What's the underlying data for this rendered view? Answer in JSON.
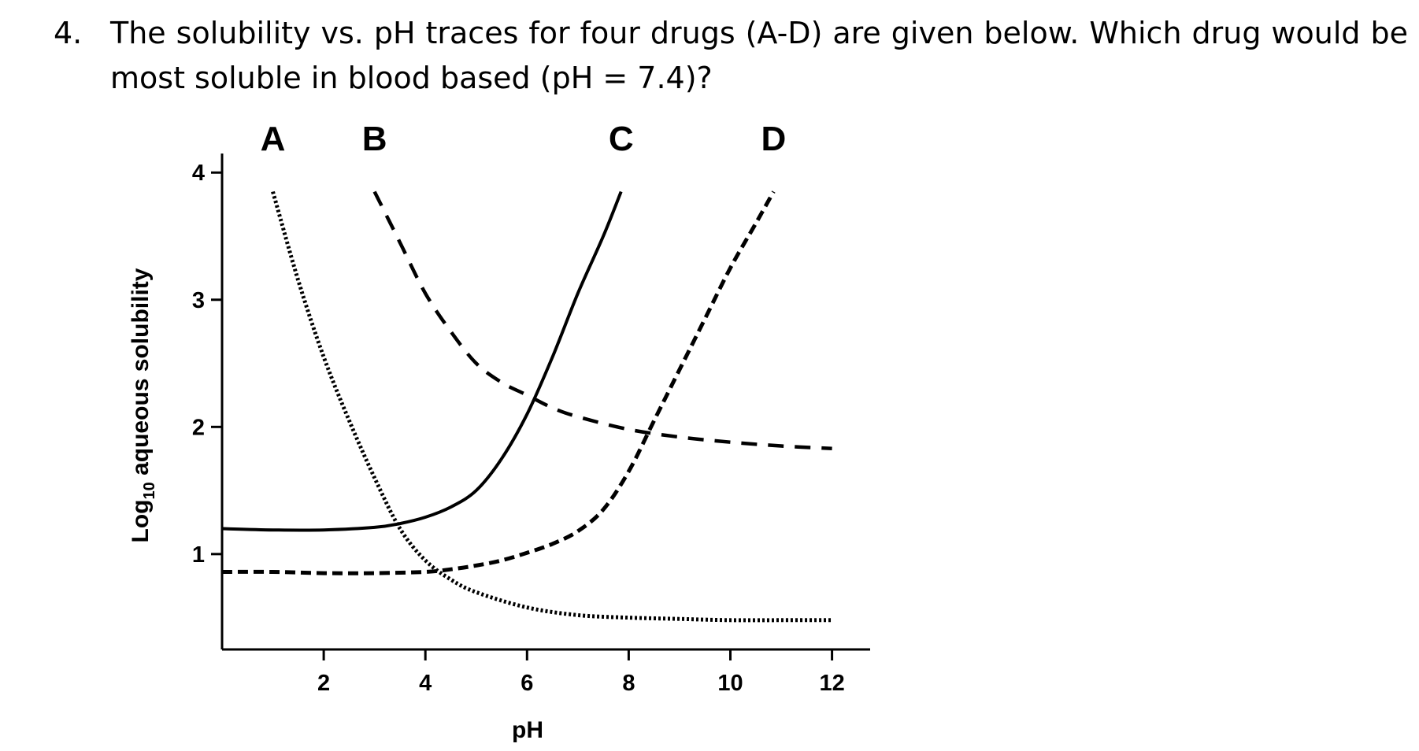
{
  "question": {
    "number": "4.",
    "line1": "The solubility vs. pH traces for four drugs (A-D) are given below. Which drug would be",
    "line2": "most soluble in blood based (pH = 7.4)?"
  },
  "chart_data": {
    "type": "line",
    "xlabel": "pH",
    "ylabel_main": "Log",
    "ylabel_sub": "10",
    "ylabel_rest": " aqueous solubility",
    "xlim": [
      0,
      12.75
    ],
    "ylim": [
      0.25,
      4.15
    ],
    "xticks": [
      2,
      4,
      6,
      8,
      10,
      12
    ],
    "yticks": [
      1,
      2,
      3,
      4
    ],
    "xtick_labels": [
      "2",
      "4",
      "6",
      "8",
      "10",
      "12"
    ],
    "ytick_labels": [
      "1",
      "2",
      "3",
      "4"
    ],
    "grid": false,
    "series": [
      {
        "name": "A",
        "style": "dotted",
        "x": [
          1,
          1.5,
          2,
          2.5,
          3,
          3.5,
          4,
          4.5,
          5,
          6,
          7,
          8,
          9,
          10,
          11,
          12
        ],
        "y": [
          3.85,
          3.15,
          2.55,
          2.05,
          1.6,
          1.2,
          0.95,
          0.8,
          0.7,
          0.58,
          0.52,
          0.5,
          0.49,
          0.48,
          0.48,
          0.48
        ]
      },
      {
        "name": "B",
        "style": "dashed",
        "x": [
          3,
          3.5,
          4,
          4.5,
          5,
          5.5,
          6,
          6.5,
          7,
          8,
          9,
          10,
          11,
          12
        ],
        "y": [
          3.85,
          3.45,
          3.05,
          2.75,
          2.5,
          2.35,
          2.25,
          2.15,
          2.08,
          1.98,
          1.92,
          1.88,
          1.85,
          1.83
        ]
      },
      {
        "name": "C",
        "style": "solid",
        "x": [
          0,
          1,
          2,
          3,
          3.5,
          4,
          4.5,
          5,
          5.5,
          6,
          6.5,
          7,
          7.5,
          7.85
        ],
        "y": [
          1.2,
          1.19,
          1.19,
          1.21,
          1.24,
          1.29,
          1.37,
          1.5,
          1.75,
          2.1,
          2.55,
          3.05,
          3.5,
          3.85
        ]
      },
      {
        "name": "D",
        "style": "dashed-heavy",
        "x": [
          0,
          1,
          2,
          3,
          4,
          4.5,
          5,
          5.5,
          6,
          6.5,
          7,
          7.5,
          8,
          8.5,
          9,
          9.5,
          10,
          10.5,
          10.85
        ],
        "y": [
          0.86,
          0.86,
          0.85,
          0.85,
          0.86,
          0.88,
          0.91,
          0.95,
          1.01,
          1.08,
          1.18,
          1.35,
          1.65,
          2.05,
          2.45,
          2.85,
          3.25,
          3.6,
          3.85
        ]
      }
    ]
  }
}
